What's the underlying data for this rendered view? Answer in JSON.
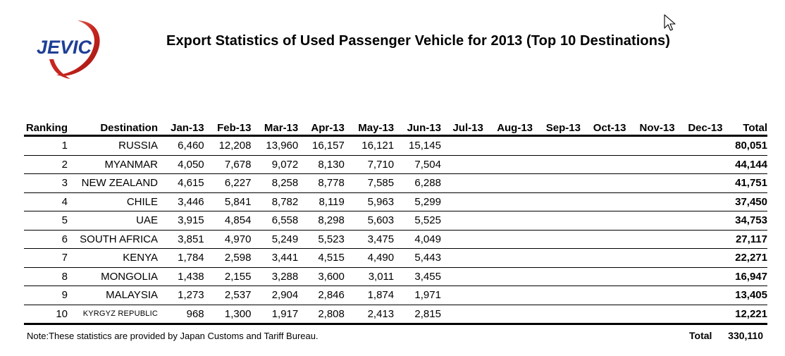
{
  "logo": {
    "text": "JEVIC"
  },
  "title": "Export Statistics of Used Passenger Vehicle for 2013 (Top 10 Destinations)",
  "table": {
    "headers": [
      "Ranking",
      "Destination",
      "Jan-13",
      "Feb-13",
      "Mar-13",
      "Apr-13",
      "May-13",
      "Jun-13",
      "Jul-13",
      "Aug-13",
      "Sep-13",
      "Oct-13",
      "Nov-13",
      "Dec-13",
      "Total"
    ],
    "rows": [
      {
        "rank": "1",
        "destination": "RUSSIA",
        "months": [
          "6,460",
          "12,208",
          "13,960",
          "16,157",
          "16,121",
          "15,145",
          "",
          "",
          "",
          "",
          "",
          ""
        ],
        "total": "80,051"
      },
      {
        "rank": "2",
        "destination": "MYANMAR",
        "months": [
          "4,050",
          "7,678",
          "9,072",
          "8,130",
          "7,710",
          "7,504",
          "",
          "",
          "",
          "",
          "",
          ""
        ],
        "total": "44,144"
      },
      {
        "rank": "3",
        "destination": "NEW ZEALAND",
        "months": [
          "4,615",
          "6,227",
          "8,258",
          "8,778",
          "7,585",
          "6,288",
          "",
          "",
          "",
          "",
          "",
          ""
        ],
        "total": "41,751"
      },
      {
        "rank": "4",
        "destination": "CHILE",
        "months": [
          "3,446",
          "5,841",
          "8,782",
          "8,119",
          "5,963",
          "5,299",
          "",
          "",
          "",
          "",
          "",
          ""
        ],
        "total": "37,450"
      },
      {
        "rank": "5",
        "destination": "UAE",
        "months": [
          "3,915",
          "4,854",
          "6,558",
          "8,298",
          "5,603",
          "5,525",
          "",
          "",
          "",
          "",
          "",
          ""
        ],
        "total": "34,753"
      },
      {
        "rank": "6",
        "destination": "SOUTH AFRICA",
        "months": [
          "3,851",
          "4,970",
          "5,249",
          "5,523",
          "3,475",
          "4,049",
          "",
          "",
          "",
          "",
          "",
          ""
        ],
        "total": "27,117"
      },
      {
        "rank": "7",
        "destination": "KENYA",
        "months": [
          "1,784",
          "2,598",
          "3,441",
          "4,515",
          "4,490",
          "5,443",
          "",
          "",
          "",
          "",
          "",
          ""
        ],
        "total": "22,271"
      },
      {
        "rank": "8",
        "destination": "MONGOLIA",
        "months": [
          "1,438",
          "2,155",
          "3,288",
          "3,600",
          "3,011",
          "3,455",
          "",
          "",
          "",
          "",
          "",
          ""
        ],
        "total": "16,947"
      },
      {
        "rank": "9",
        "destination": "MALAYSIA",
        "months": [
          "1,273",
          "2,537",
          "2,904",
          "2,846",
          "1,874",
          "1,971",
          "",
          "",
          "",
          "",
          "",
          ""
        ],
        "total": "13,405"
      },
      {
        "rank": "10",
        "destination": "KYRGYZ REPUBLIC",
        "months": [
          "968",
          "1,300",
          "1,917",
          "2,808",
          "2,413",
          "2,815",
          "",
          "",
          "",
          "",
          "",
          ""
        ],
        "total": "12,221"
      }
    ]
  },
  "note": "Note:These statistics are provided by Japan Customs and Tariff Bureau.",
  "grand_total": {
    "label": "Total",
    "value": "330,110"
  },
  "colors": {
    "logo_blue": "#1f3f96",
    "logo_red": "#c0201e"
  },
  "icons": {
    "cursor": "mouse-pointer-icon"
  }
}
